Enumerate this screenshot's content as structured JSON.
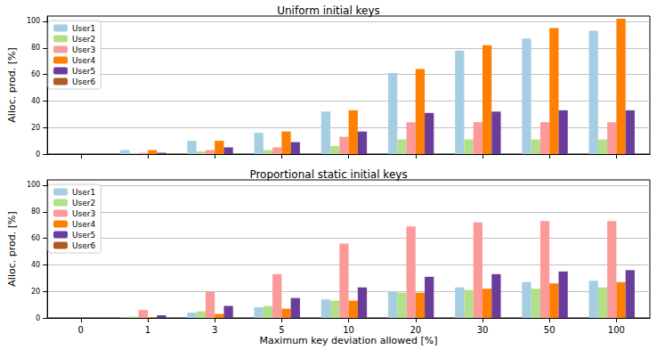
{
  "chart_data": [
    {
      "type": "bar",
      "title": "Uniform initial keys",
      "ylabel": "Alloc. prod. [%]",
      "categories": [
        "0",
        "1",
        "3",
        "5",
        "10",
        "20",
        "30",
        "50",
        "100"
      ],
      "ylim": [
        0,
        104
      ],
      "yticks": [
        0,
        20,
        40,
        60,
        80,
        100
      ],
      "grid": true,
      "legend": "upper left",
      "tick_labels": "y",
      "series": [
        {
          "name": "User1",
          "color": "#a6cee3",
          "values": [
            0,
            3,
            10,
            16,
            32,
            61,
            78,
            87,
            93
          ]
        },
        {
          "name": "User2",
          "color": "#b2df8a",
          "values": [
            0,
            0.5,
            2,
            3,
            6,
            11,
            11,
            11,
            11
          ]
        },
        {
          "name": "User3",
          "color": "#fb9a99",
          "values": [
            0,
            1,
            3,
            5,
            13,
            24,
            24,
            24,
            24
          ]
        },
        {
          "name": "User4",
          "color": "#ff7f00",
          "values": [
            0,
            3,
            10,
            17,
            33,
            64,
            82,
            95,
            102
          ]
        },
        {
          "name": "User5",
          "color": "#6a3d9a",
          "values": [
            0,
            1,
            5,
            9,
            17,
            31,
            32,
            33,
            33
          ]
        },
        {
          "name": "User6",
          "color": "#b15928",
          "values": [
            0,
            0,
            0,
            0,
            0,
            0,
            0,
            0,
            0
          ]
        }
      ]
    },
    {
      "type": "bar",
      "title": "Proportional static initial keys",
      "xlabel": "Maximum key deviation allowed [%]",
      "ylabel": "Alloc. prod. [%]",
      "categories": [
        "0",
        "1",
        "3",
        "5",
        "10",
        "20",
        "30",
        "50",
        "100"
      ],
      "ylim": [
        0,
        104
      ],
      "yticks": [
        0,
        20,
        40,
        60,
        80,
        100
      ],
      "grid": true,
      "legend": "upper left",
      "series": [
        {
          "name": "User1",
          "color": "#a6cee3",
          "values": [
            0,
            0.5,
            4,
            8,
            14,
            20,
            23,
            27,
            28
          ]
        },
        {
          "name": "User2",
          "color": "#b2df8a",
          "values": [
            0,
            1,
            5,
            9,
            13,
            19,
            21,
            22,
            23
          ]
        },
        {
          "name": "User3",
          "color": "#fb9a99",
          "values": [
            0,
            6,
            20,
            33,
            56,
            69,
            72,
            73,
            73
          ]
        },
        {
          "name": "User4",
          "color": "#ff7f00",
          "values": [
            0,
            0.5,
            3,
            7,
            13,
            19,
            22,
            26,
            27
          ]
        },
        {
          "name": "User5",
          "color": "#6a3d9a",
          "values": [
            0,
            2,
            9,
            15,
            23,
            31,
            33,
            35,
            36
          ]
        },
        {
          "name": "User6",
          "color": "#b15928",
          "values": [
            0,
            0,
            0,
            0,
            0,
            0,
            0,
            0,
            0
          ]
        }
      ]
    }
  ]
}
